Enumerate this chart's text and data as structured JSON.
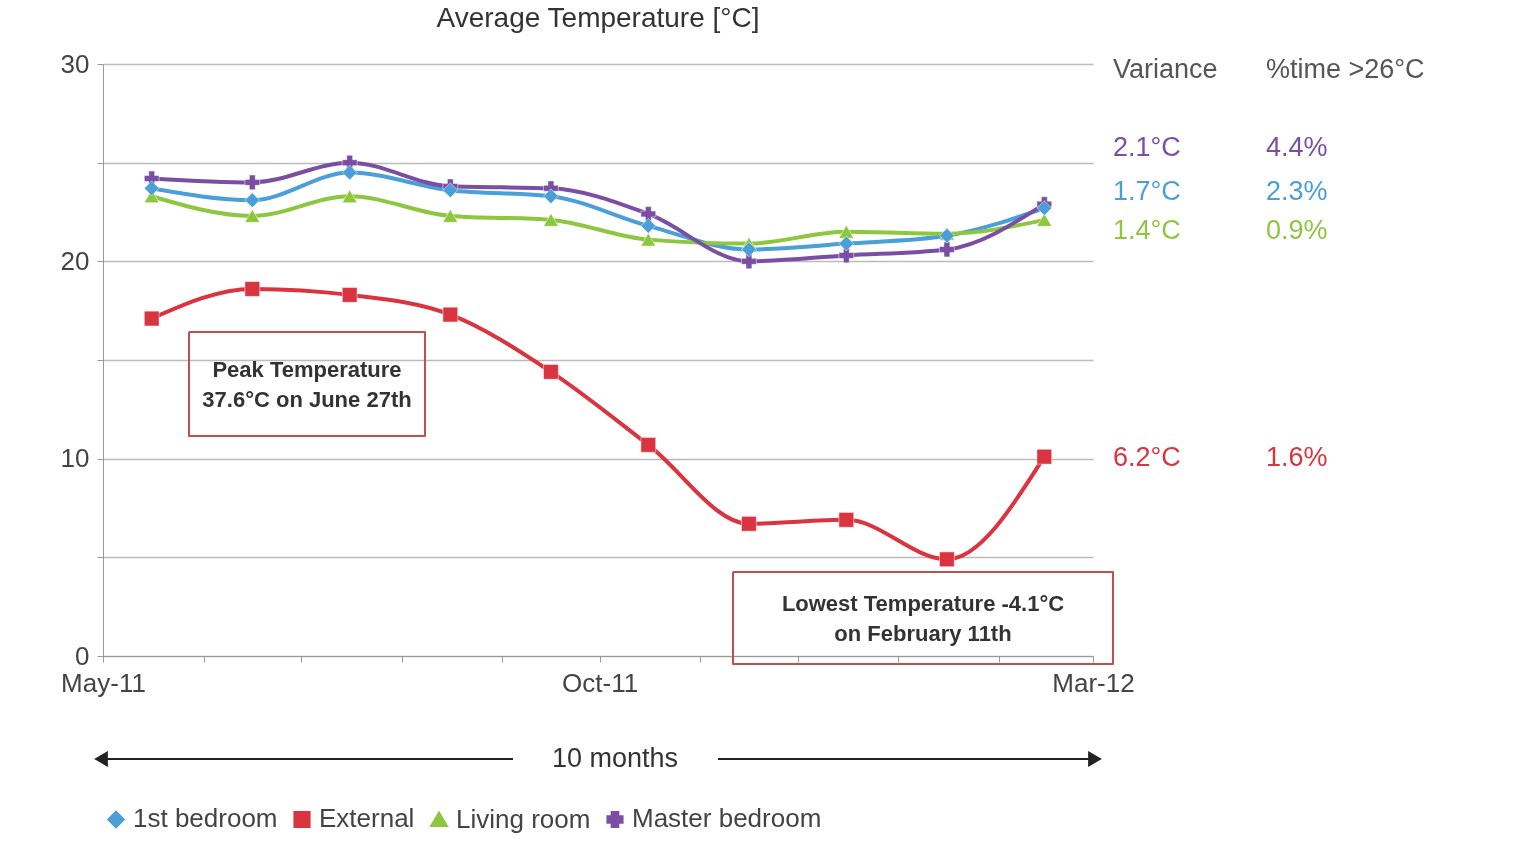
{
  "chart_data": {
    "type": "line",
    "title": "Average Temperature [°C]",
    "x": [
      "2011-05-16",
      "2011-06-16",
      "2011-07-16",
      "2011-08-16",
      "2011-09-16",
      "2011-10-16",
      "2011-11-16",
      "2011-12-16",
      "2012-01-16",
      "2012-02-15"
    ],
    "xlim": [
      "2011-05-01",
      "2012-03-01"
    ],
    "xticks": [
      {
        "value": "2011-05-01",
        "label": "May-11"
      },
      {
        "value": "2011-06-01",
        "label": null
      },
      {
        "value": "2011-07-01",
        "label": null
      },
      {
        "value": "2011-08-01",
        "label": null
      },
      {
        "value": "2011-09-01",
        "label": null
      },
      {
        "value": "2011-10-01",
        "label": "Oct-11"
      },
      {
        "value": "2011-11-01",
        "label": null
      },
      {
        "value": "2011-12-01",
        "label": null
      },
      {
        "value": "2012-01-01",
        "label": null
      },
      {
        "value": "2012-02-01",
        "label": null
      },
      {
        "value": "2012-03-01",
        "label": "Mar-12"
      }
    ],
    "ylim": [
      0,
      30
    ],
    "yticks": [
      0,
      {
        "value": 5,
        "label": null
      },
      10,
      {
        "value": 15,
        "label": null
      },
      20,
      {
        "value": 25,
        "label": null
      },
      30
    ],
    "grid": "y",
    "legend": "bottom",
    "line_style": "solid",
    "series": [
      {
        "name": "1st bedroom",
        "color": "#4a9fd8",
        "marker": "diamond",
        "values": [
          23.7,
          23.1,
          24.5,
          23.6,
          23.3,
          21.8,
          20.6,
          20.9,
          21.3,
          22.7
        ]
      },
      {
        "name": "External",
        "color": "#d9343f",
        "marker": "square",
        "values": [
          17.1,
          18.6,
          18.3,
          17.3,
          14.4,
          10.7,
          6.7,
          6.9,
          4.9,
          10.1
        ]
      },
      {
        "name": "Living room",
        "color": "#8dc63f",
        "marker": "triangle",
        "values": [
          23.3,
          22.3,
          23.3,
          22.3,
          22.1,
          21.1,
          20.9,
          21.5,
          21.4,
          22.1
        ]
      },
      {
        "name": "Master bedroom",
        "color": "#7a4fa3",
        "marker": "cross",
        "values": [
          24.2,
          24.0,
          25.0,
          23.8,
          23.7,
          22.4,
          20.0,
          20.3,
          20.6,
          22.9
        ]
      }
    ],
    "annotations": [
      "Variance",
      "%time >26°C",
      "2.1°C",
      "4.4%",
      "1.7°C",
      "2.3%",
      "1.4°C",
      "0.9%",
      "6.2°C",
      "1.6%",
      "Peak Temperature 37.6°C on June 27th",
      "Lowest Temperature -4.1°C on February 11th",
      "10 months"
    ]
  }
}
